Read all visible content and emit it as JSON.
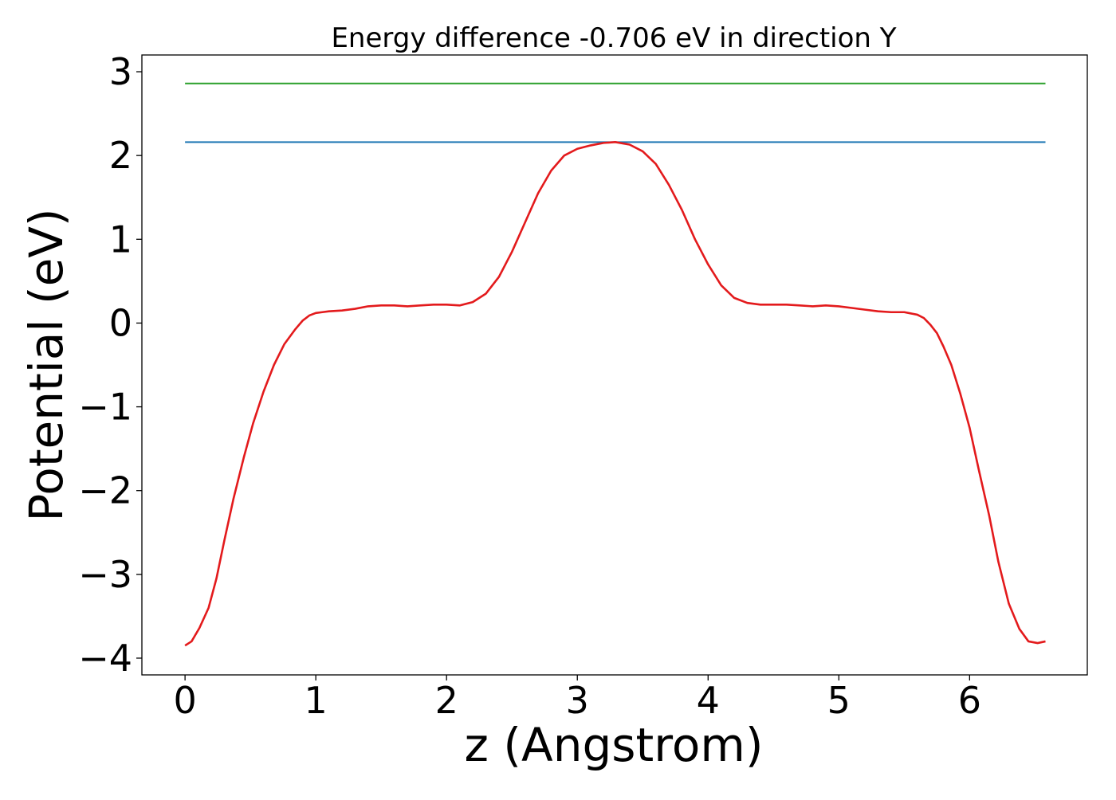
{
  "chart_data": {
    "type": "line",
    "title": "Energy difference -0.706 eV in direction Y",
    "xlabel": "z (Angstrom)",
    "ylabel": "Potential (eV)",
    "xlim": [
      -0.33,
      6.9
    ],
    "ylim": [
      -4.2,
      3.2
    ],
    "xticks": [
      0,
      1,
      2,
      3,
      4,
      5,
      6
    ],
    "xtick_labels": [
      "0",
      "1",
      "2",
      "3",
      "4",
      "5",
      "6"
    ],
    "yticks": [
      3,
      2,
      1,
      0,
      -1,
      -2,
      -3,
      -4
    ],
    "ytick_labels": [
      "3",
      "2",
      "1",
      "0",
      "−1",
      "−2",
      "−3",
      "−4"
    ],
    "grid": false,
    "series": [
      {
        "color": "#2ca02c",
        "x": [
          0.0,
          6.58
        ],
        "y": [
          2.86,
          2.86
        ]
      },
      {
        "color": "#1f77b4",
        "x": [
          0.0,
          6.58
        ],
        "y": [
          2.16,
          2.16
        ]
      },
      {
        "color": "#e31a1c",
        "x": [
          0.0,
          0.05,
          0.11,
          0.18,
          0.24,
          0.3,
          0.37,
          0.45,
          0.52,
          0.6,
          0.68,
          0.76,
          0.84,
          0.9,
          0.95,
          1.0,
          1.05,
          1.1,
          1.2,
          1.3,
          1.4,
          1.5,
          1.6,
          1.7,
          1.8,
          1.9,
          2.0,
          2.1,
          2.2,
          2.3,
          2.4,
          2.5,
          2.6,
          2.7,
          2.8,
          2.9,
          3.0,
          3.1,
          3.2,
          3.29,
          3.4,
          3.5,
          3.6,
          3.7,
          3.8,
          3.9,
          4.0,
          4.1,
          4.2,
          4.3,
          4.4,
          4.5,
          4.6,
          4.7,
          4.8,
          4.9,
          5.0,
          5.1,
          5.2,
          5.3,
          5.4,
          5.5,
          5.6,
          5.65,
          5.7,
          5.75,
          5.8,
          5.86,
          5.93,
          6.0,
          6.07,
          6.15,
          6.22,
          6.3,
          6.38,
          6.45,
          6.52,
          6.58
        ],
        "y": [
          -3.85,
          -3.8,
          -3.64,
          -3.4,
          -3.05,
          -2.6,
          -2.1,
          -1.6,
          -1.2,
          -0.82,
          -0.5,
          -0.25,
          -0.08,
          0.03,
          0.09,
          0.12,
          0.13,
          0.14,
          0.15,
          0.17,
          0.2,
          0.21,
          0.21,
          0.2,
          0.21,
          0.22,
          0.22,
          0.21,
          0.25,
          0.35,
          0.55,
          0.85,
          1.2,
          1.55,
          1.82,
          2.0,
          2.08,
          2.12,
          2.15,
          2.16,
          2.13,
          2.05,
          1.9,
          1.65,
          1.35,
          1.0,
          0.7,
          0.45,
          0.3,
          0.24,
          0.22,
          0.22,
          0.22,
          0.21,
          0.2,
          0.21,
          0.2,
          0.18,
          0.16,
          0.14,
          0.13,
          0.13,
          0.1,
          0.06,
          -0.02,
          -0.12,
          -0.28,
          -0.5,
          -0.85,
          -1.25,
          -1.75,
          -2.3,
          -2.85,
          -3.35,
          -3.65,
          -3.8,
          -3.82,
          -3.8
        ]
      }
    ]
  }
}
